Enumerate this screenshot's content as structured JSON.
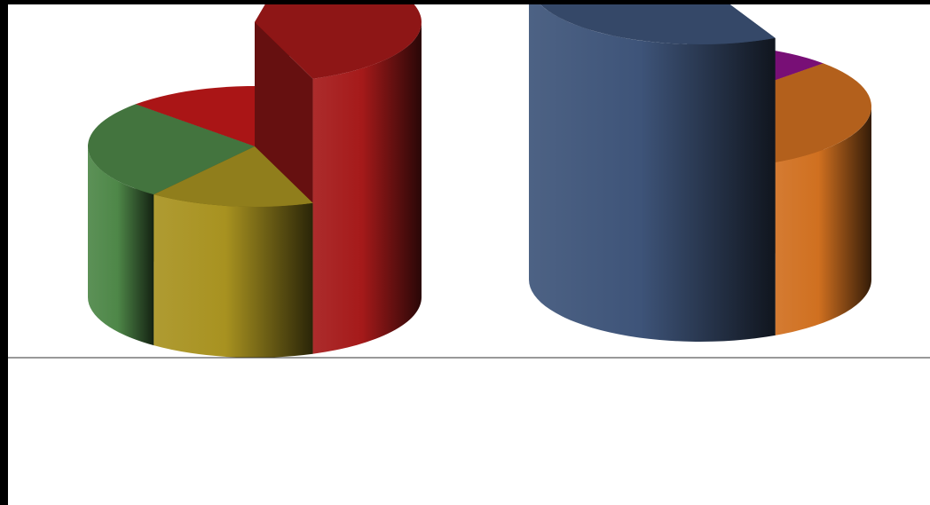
{
  "chart_data": [
    {
      "type": "pie",
      "style": "3d-cylinder-exploded",
      "title": "",
      "slices": [
        {
          "label": "",
          "value": 41,
          "color": "#A51A1A",
          "extruded": true
        },
        {
          "label": "",
          "value": 16,
          "color": "#A89220",
          "extruded": false
        },
        {
          "label": "",
          "value": 27,
          "color": "#4E8748",
          "extruded": false
        },
        {
          "label": "",
          "value": 16,
          "color": "#C6181A",
          "extruded": false
        }
      ]
    },
    {
      "type": "pie",
      "style": "3d-cylinder-exploded",
      "title": "",
      "slices": [
        {
          "label": "",
          "value": 56,
          "color": "#3E5479",
          "extruded": true
        },
        {
          "label": "",
          "value": 3,
          "color": "#3E7A18",
          "extruded": false
        },
        {
          "label": "",
          "value": 11,
          "color": "#8C1189",
          "extruded": false
        },
        {
          "label": "",
          "value": 30,
          "color": "#D07020",
          "extruded": false
        }
      ]
    }
  ],
  "colors": {
    "background": "#ffffff",
    "frame": "#000000",
    "divider_line": "#333333"
  }
}
